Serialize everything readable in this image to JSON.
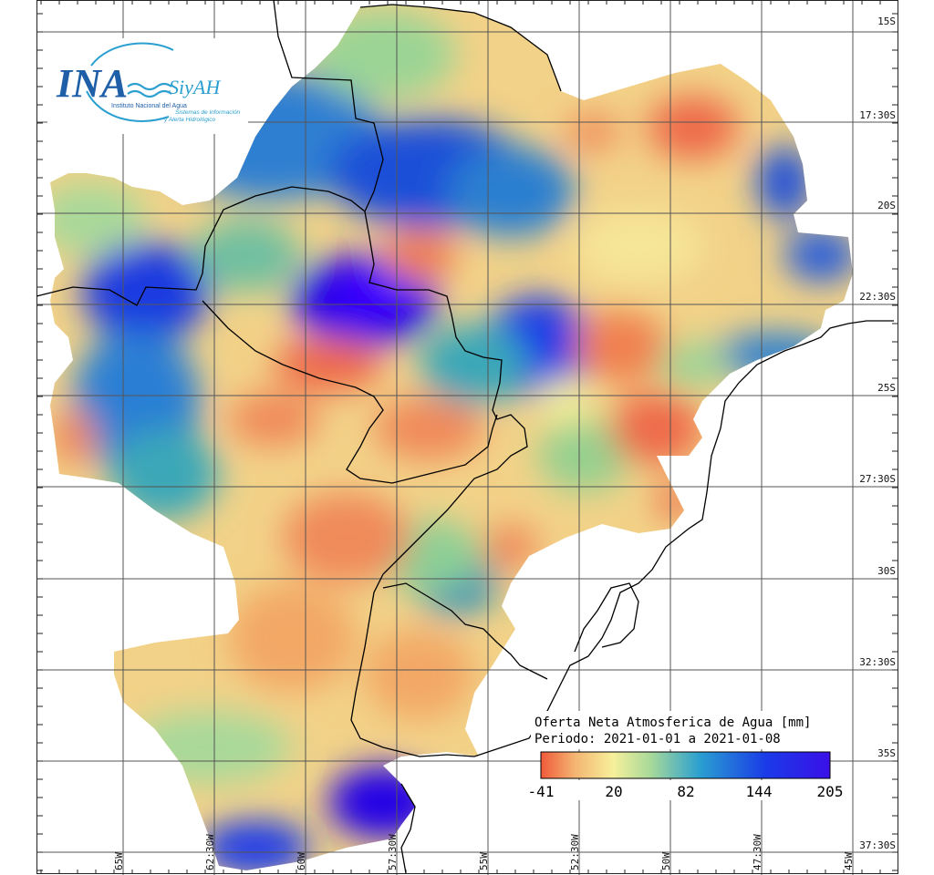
{
  "logo": {
    "brand": "INA",
    "product": "SiyAH",
    "org": "Instituto Nacional del Agua",
    "tagline_1": "Sistemas de información",
    "tagline_2": "y Alerta Hidrológico"
  },
  "legend": {
    "title": "Oferta Neta Atmosferica de Agua [mm]",
    "period": "Periodo: 2021-01-01 a 2021-01-08",
    "ticks": [
      "-41",
      "20",
      "82",
      "144",
      "205"
    ],
    "gradient_colors": [
      "#f05a3a",
      "#f4b673",
      "#f6f09a",
      "#a8d99a",
      "#2a9fd0",
      "#1a3ae8",
      "#3b10e8"
    ]
  },
  "grid": {
    "lat_labels": [
      "15S",
      "17:30S",
      "20S",
      "22:30S",
      "25S",
      "27:30S",
      "30S",
      "32:30S",
      "35S",
      "37:30S"
    ],
    "lon_labels": [
      "65W",
      "62:30W",
      "60W",
      "57:30W",
      "55W",
      "52:30W",
      "50W",
      "47:30W",
      "45W"
    ]
  },
  "colors": {
    "neg": "#ee6a48",
    "low": "#f3a866",
    "mid": "#f5ea98",
    "green": "#95d08f",
    "teal": "#3aa7b8",
    "blue": "#1f63d8",
    "deep": "#2200e6"
  }
}
